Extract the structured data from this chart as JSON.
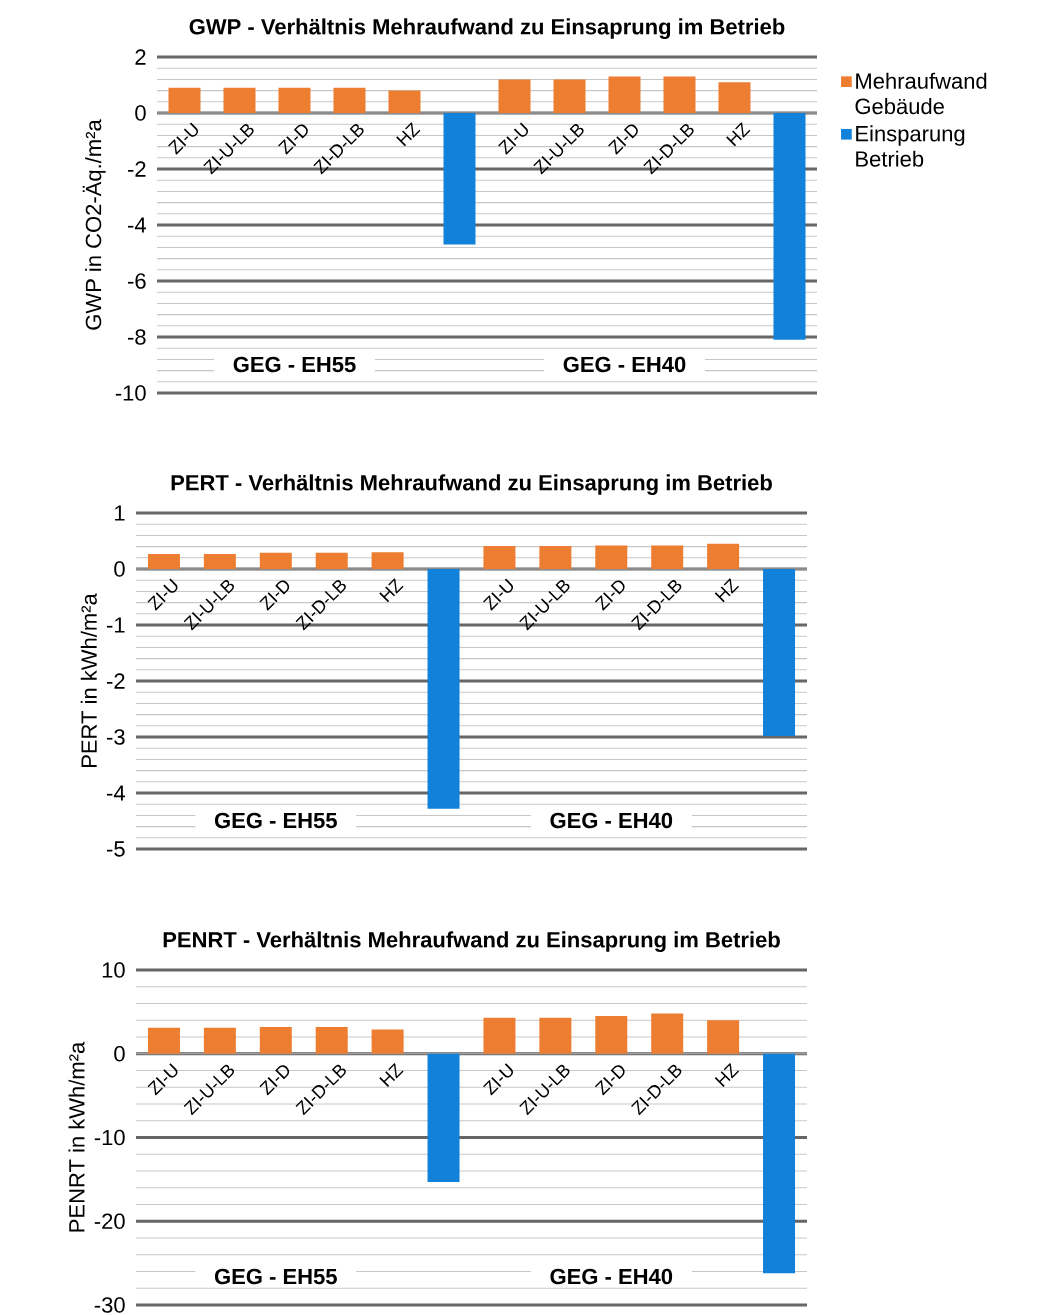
{
  "chart_data": [
    {
      "type": "bar",
      "title": "GWP - Verhältnis Mehraufwand zu Einsaprung im Betrieb",
      "ylabel": "GWP in CO2-Äq./m²a",
      "categories": [
        "ZI-U",
        "ZI-U-LB",
        "ZI-D",
        "ZI-D-LB",
        "HZ",
        null,
        "ZI-U",
        "ZI-U-LB",
        "ZI-D",
        "ZI-D-LB",
        "HZ",
        null
      ],
      "series": [
        {
          "name": "Mehraufwand Gebäude",
          "color": "#ed7d31",
          "values": [
            0.9,
            0.9,
            0.9,
            0.9,
            0.8,
            null,
            1.2,
            1.2,
            1.3,
            1.3,
            1.1,
            null
          ]
        },
        {
          "name": "Einsparung Betrieb",
          "color": "#1281d9",
          "values": [
            null,
            null,
            null,
            null,
            null,
            -4.7,
            null,
            null,
            null,
            null,
            null,
            -8.1
          ]
        }
      ],
      "ylim": [
        -10,
        2
      ],
      "yticks": [
        -10,
        -8,
        -6,
        -4,
        -2,
        0,
        2
      ],
      "grid": "y",
      "legend": "right",
      "annotations": [
        "GEG - EH55",
        "GEG - EH40"
      ]
    },
    {
      "type": "bar",
      "title": "PERT - Verhältnis Mehraufwand zu Einsaprung im Betrieb",
      "ylabel": "PERT in kWh/m²a",
      "categories": [
        "ZI-U",
        "ZI-U-LB",
        "ZI-D",
        "ZI-D-LB",
        "HZ",
        null,
        "ZI-U",
        "ZI-U-LB",
        "ZI-D",
        "ZI-D-LB",
        "HZ",
        null
      ],
      "series": [
        {
          "color": "#ed7d31",
          "values": [
            0.27,
            0.27,
            0.29,
            0.29,
            0.3,
            null,
            0.41,
            0.41,
            0.42,
            0.42,
            0.45,
            null
          ]
        },
        {
          "color": "#1281d9",
          "values": [
            null,
            null,
            null,
            null,
            null,
            -4.28,
            null,
            null,
            null,
            null,
            null,
            -2.98
          ]
        }
      ],
      "ylim": [
        -5,
        1
      ],
      "yticks": [
        -5,
        -4,
        -3,
        -2,
        -1,
        0,
        1
      ],
      "grid": "y",
      "annotations": [
        "GEG - EH55",
        "GEG - EH40"
      ]
    },
    {
      "type": "bar",
      "title": "PENRT - Verhältnis Mehraufwand zu Einsaprung im Betrieb",
      "ylabel": "PENRT in kWh/m²a",
      "categories": [
        "ZI-U",
        "ZI-U-LB",
        "ZI-D",
        "ZI-D-LB",
        "HZ",
        null,
        "ZI-U",
        "ZI-U-LB",
        "ZI-D",
        "ZI-D-LB",
        "HZ",
        null
      ],
      "series": [
        {
          "color": "#ed7d31",
          "values": [
            3.1,
            3.1,
            3.2,
            3.2,
            2.9,
            null,
            4.3,
            4.3,
            4.5,
            4.8,
            4.0,
            null
          ]
        },
        {
          "color": "#1281d9",
          "values": [
            null,
            null,
            null,
            null,
            null,
            -15.3,
            null,
            null,
            null,
            null,
            null,
            -26.2
          ]
        }
      ],
      "ylim": [
        -30,
        10
      ],
      "yticks": [
        -30,
        -20,
        -10,
        0,
        10
      ],
      "grid": "y",
      "annotations": [
        "GEG - EH55",
        "GEG - EH40"
      ]
    }
  ]
}
